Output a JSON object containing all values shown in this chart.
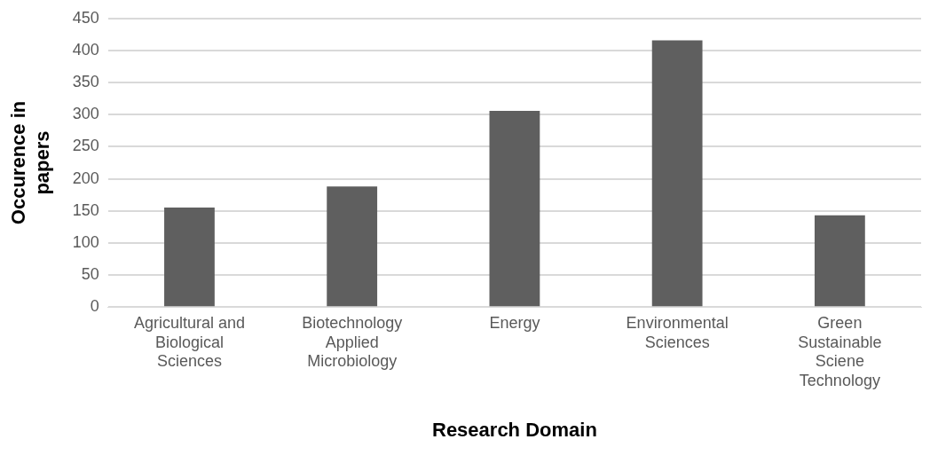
{
  "chart_data": {
    "type": "bar",
    "xlabel": "Research Domain",
    "ylabel": "Occurence in papers",
    "categories": [
      "Agricultural and Biological Sciences",
      "Biotechnology Applied Microbiology",
      "Energy",
      "Environmental Sciences",
      "Green Sustainable Sciene Technology"
    ],
    "values": [
      155,
      188,
      306,
      416,
      143
    ],
    "color": "#5f5f5f",
    "ylim": [
      0,
      450
    ],
    "yticks": [
      0,
      50,
      100,
      150,
      200,
      250,
      300,
      350,
      400,
      450
    ],
    "grid": "y",
    "legend": false
  }
}
